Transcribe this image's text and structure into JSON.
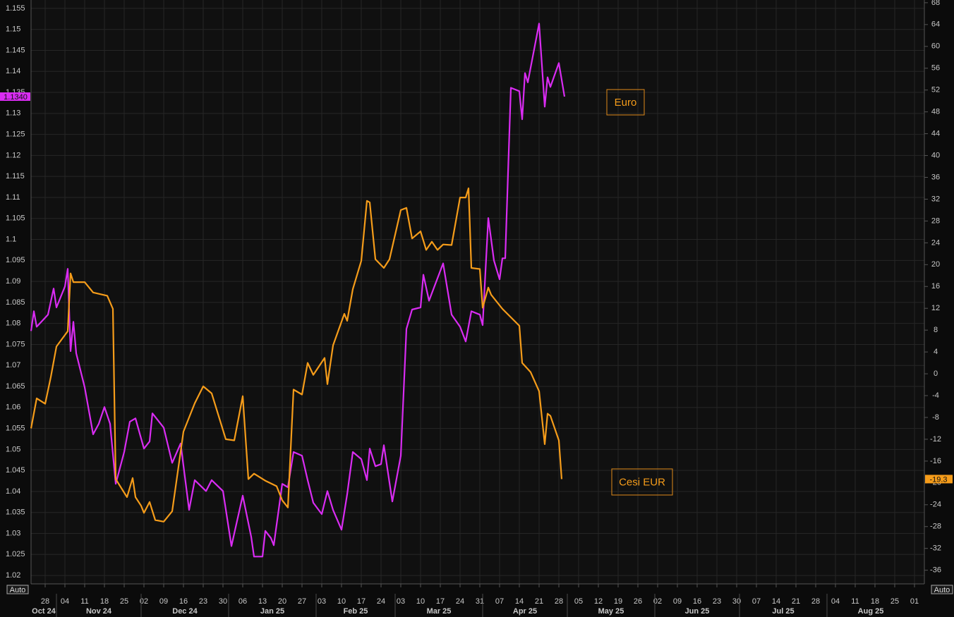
{
  "chart_data": {
    "type": "line",
    "grid": true,
    "xlim": [
      "2024-10-23",
      "2025-09-04"
    ],
    "xticks": [
      {
        "value": "2024-10-28",
        "label": "28"
      },
      {
        "value": "2024-11-04",
        "label": "04"
      },
      {
        "value": "2024-11-11",
        "label": "11"
      },
      {
        "value": "2024-11-18",
        "label": "18"
      },
      {
        "value": "2024-11-25",
        "label": "25"
      },
      {
        "value": "2024-12-02",
        "label": "02"
      },
      {
        "value": "2024-12-09",
        "label": "09"
      },
      {
        "value": "2024-12-16",
        "label": "16"
      },
      {
        "value": "2024-12-23",
        "label": "23"
      },
      {
        "value": "2024-12-30",
        "label": "30"
      },
      {
        "value": "2025-01-06",
        "label": "06"
      },
      {
        "value": "2025-01-13",
        "label": "13"
      },
      {
        "value": "2025-01-20",
        "label": "20"
      },
      {
        "value": "2025-01-27",
        "label": "27"
      },
      {
        "value": "2025-02-03",
        "label": "03"
      },
      {
        "value": "2025-02-10",
        "label": "10"
      },
      {
        "value": "2025-02-17",
        "label": "17"
      },
      {
        "value": "2025-02-24",
        "label": "24"
      },
      {
        "value": "2025-03-03",
        "label": "03"
      },
      {
        "value": "2025-03-10",
        "label": "10"
      },
      {
        "value": "2025-03-17",
        "label": "17"
      },
      {
        "value": "2025-03-24",
        "label": "24"
      },
      {
        "value": "2025-03-31",
        "label": "31"
      },
      {
        "value": "2025-04-07",
        "label": "07"
      },
      {
        "value": "2025-04-14",
        "label": "14"
      },
      {
        "value": "2025-04-21",
        "label": "21"
      },
      {
        "value": "2025-04-28",
        "label": "28"
      },
      {
        "value": "2025-05-05",
        "label": "05"
      },
      {
        "value": "2025-05-12",
        "label": "12"
      },
      {
        "value": "2025-05-19",
        "label": "19"
      },
      {
        "value": "2025-05-26",
        "label": "26"
      },
      {
        "value": "2025-06-02",
        "label": "02"
      },
      {
        "value": "2025-06-09",
        "label": "09"
      },
      {
        "value": "2025-06-16",
        "label": "16"
      },
      {
        "value": "2025-06-23",
        "label": "23"
      },
      {
        "value": "2025-06-30",
        "label": "30"
      },
      {
        "value": "2025-07-07",
        "label": "07"
      },
      {
        "value": "2025-07-14",
        "label": "14"
      },
      {
        "value": "2025-07-21",
        "label": "21"
      },
      {
        "value": "2025-07-28",
        "label": "28"
      },
      {
        "value": "2025-08-04",
        "label": "04"
      },
      {
        "value": "2025-08-11",
        "label": "11"
      },
      {
        "value": "2025-08-18",
        "label": "18"
      },
      {
        "value": "2025-08-25",
        "label": "25"
      },
      {
        "value": "2025-09-01",
        "label": "01"
      }
    ],
    "x_period_labels": [
      {
        "value": "2024-10",
        "label": "Oct 24"
      },
      {
        "value": "2024-11",
        "label": "Nov 24"
      },
      {
        "value": "2024-12",
        "label": "Dec 24"
      },
      {
        "value": "2025-01",
        "label": "Jan 25"
      },
      {
        "value": "2025-02",
        "label": "Feb 25"
      },
      {
        "value": "2025-03",
        "label": "Mar 25"
      },
      {
        "value": "2025-04",
        "label": "Apr 25"
      },
      {
        "value": "2025-05",
        "label": "May 25"
      },
      {
        "value": "2025-06",
        "label": "Jun 25"
      },
      {
        "value": "2025-07",
        "label": "Jul 25"
      },
      {
        "value": "2025-08",
        "label": "Aug 25"
      }
    ],
    "ylim": [
      1.018,
      1.157
    ],
    "yticks": [
      1.02,
      1.025,
      1.03,
      1.035,
      1.04,
      1.045,
      1.05,
      1.055,
      1.06,
      1.065,
      1.07,
      1.075,
      1.08,
      1.085,
      1.09,
      1.095,
      1.1,
      1.105,
      1.11,
      1.115,
      1.12,
      1.125,
      1.13,
      1.135,
      1.14,
      1.145,
      1.15,
      1.155
    ],
    "y2lim": [
      -38.5,
      68.5
    ],
    "y2ticks": [
      -36,
      -32,
      -28,
      -24,
      -20,
      -16,
      -12,
      -8,
      -4,
      0,
      4,
      8,
      12,
      16,
      20,
      24,
      28,
      32,
      36,
      40,
      44,
      48,
      52,
      56,
      60,
      64,
      68
    ],
    "left_scale_mode": "Auto",
    "right_scale_mode": "Auto",
    "series": [
      {
        "name": "Euro",
        "color": "#d92cf2",
        "axis": "y",
        "end_label": {
          "value": 1.134,
          "label": "1.1340"
        },
        "x": [
          "2024-10-23",
          "2024-10-24",
          "2024-10-25",
          "2024-10-29",
          "2024-10-31",
          "2024-11-01",
          "2024-11-04",
          "2024-11-05",
          "2024-11-06",
          "2024-11-07",
          "2024-11-08",
          "2024-11-11",
          "2024-11-14",
          "2024-11-16",
          "2024-11-18",
          "2024-11-20",
          "2024-11-22",
          "2024-11-25",
          "2024-11-27",
          "2024-11-29",
          "2024-12-02",
          "2024-12-04",
          "2024-12-05",
          "2024-12-09",
          "2024-12-12",
          "2024-12-15",
          "2024-12-18",
          "2024-12-20",
          "2024-12-24",
          "2024-12-26",
          "2024-12-30",
          "2025-01-02",
          "2025-01-06",
          "2025-01-09",
          "2025-01-10",
          "2025-01-13",
          "2025-01-14",
          "2025-01-16",
          "2025-01-17",
          "2025-01-20",
          "2025-01-22",
          "2025-01-24",
          "2025-01-27",
          "2025-01-29",
          "2025-01-31",
          "2025-02-03",
          "2025-02-05",
          "2025-02-07",
          "2025-02-10",
          "2025-02-12",
          "2025-02-14",
          "2025-02-17",
          "2025-02-19",
          "2025-02-20",
          "2025-02-22",
          "2025-02-24",
          "2025-02-25",
          "2025-02-28",
          "2025-03-03",
          "2025-03-05",
          "2025-03-07",
          "2025-03-10",
          "2025-03-11",
          "2025-03-13",
          "2025-03-18",
          "2025-03-21",
          "2025-03-24",
          "2025-03-26",
          "2025-03-28",
          "2025-03-31",
          "2025-04-01",
          "2025-04-03",
          "2025-04-05",
          "2025-04-07",
          "2025-04-08",
          "2025-04-09",
          "2025-04-11",
          "2025-04-14",
          "2025-04-15",
          "2025-04-16",
          "2025-04-17",
          "2025-04-21",
          "2025-04-23",
          "2025-04-24",
          "2025-04-25",
          "2025-04-28",
          "2025-04-30"
        ],
        "values": [
          1.0782,
          1.0829,
          1.0792,
          1.0821,
          1.0883,
          1.0838,
          1.0888,
          1.093,
          1.0734,
          1.0804,
          1.0729,
          1.0648,
          1.0536,
          1.0561,
          1.0601,
          1.0561,
          1.0418,
          1.0494,
          1.0566,
          1.0574,
          1.0502,
          1.0519,
          1.0586,
          1.0552,
          1.0468,
          1.0514,
          1.0356,
          1.0427,
          1.0401,
          1.0427,
          1.0401,
          1.027,
          1.039,
          1.0292,
          1.0245,
          1.0245,
          1.0306,
          1.0289,
          1.0272,
          1.0418,
          1.041,
          1.0494,
          1.0485,
          1.0427,
          1.0373,
          1.0346,
          1.0401,
          1.0356,
          1.0309,
          1.0393,
          1.0494,
          1.0477,
          1.0427,
          1.0502,
          1.046,
          1.0465,
          1.051,
          1.0376,
          1.0485,
          1.0787,
          1.0833,
          1.0838,
          1.0916,
          1.0854,
          1.0943,
          1.0821,
          1.0792,
          1.0757,
          1.0829,
          1.0821,
          1.0796,
          1.1051,
          1.095,
          1.0905,
          1.0955,
          1.0955,
          1.1361,
          1.1353,
          1.1286,
          1.1396,
          1.1374,
          1.1514,
          1.1316,
          1.1386,
          1.1363,
          1.142,
          1.134
        ]
      },
      {
        "name": "Cesi EUR",
        "color": "#f59c1a",
        "axis": "y2",
        "end_label": -19.3,
        "x": [
          "2024-10-23",
          "2024-10-25",
          "2024-10-28",
          "2024-10-30",
          "2024-11-01",
          "2024-11-04",
          "2024-11-05",
          "2024-11-06",
          "2024-11-07",
          "2024-11-11",
          "2024-11-14",
          "2024-11-19",
          "2024-11-21",
          "2024-11-22",
          "2024-11-26",
          "2024-11-28",
          "2024-11-29",
          "2024-12-01",
          "2024-12-02",
          "2024-12-04",
          "2024-12-06",
          "2024-12-09",
          "2024-12-12",
          "2024-12-16",
          "2024-12-20",
          "2024-12-23",
          "2024-12-26",
          "2024-12-31",
          "2025-01-03",
          "2025-01-06",
          "2025-01-08",
          "2025-01-10",
          "2025-01-14",
          "2025-01-18",
          "2025-01-20",
          "2025-01-22",
          "2025-01-24",
          "2025-01-27",
          "2025-01-29",
          "2025-01-31",
          "2025-02-04",
          "2025-02-05",
          "2025-02-07",
          "2025-02-11",
          "2025-02-12",
          "2025-02-14",
          "2025-02-17",
          "2025-02-19",
          "2025-02-20",
          "2025-02-22",
          "2025-02-25",
          "2025-02-27",
          "2025-03-03",
          "2025-03-05",
          "2025-03-07",
          "2025-03-10",
          "2025-03-12",
          "2025-03-14",
          "2025-03-16",
          "2025-03-18",
          "2025-03-21",
          "2025-03-24",
          "2025-03-26",
          "2025-03-27",
          "2025-03-28",
          "2025-03-31",
          "2025-04-01",
          "2025-04-03",
          "2025-04-04",
          "2025-04-08",
          "2025-04-14",
          "2025-04-15",
          "2025-04-18",
          "2025-04-21",
          "2025-04-23",
          "2025-04-24",
          "2025-04-25",
          "2025-04-28",
          "2025-04-29"
        ],
        "values": [
          -10.0,
          -4.5,
          -5.5,
          -0.6,
          5.0,
          7.1,
          7.8,
          18.4,
          16.8,
          16.8,
          14.9,
          14.3,
          11.9,
          -19.3,
          -22.6,
          -19.1,
          -22.6,
          -24.2,
          -25.5,
          -23.5,
          -26.8,
          -27.1,
          -25.2,
          -10.6,
          -5.4,
          -2.3,
          -3.6,
          -12.0,
          -12.2,
          -4.1,
          -19.3,
          -18.3,
          -19.6,
          -20.6,
          -23.2,
          -24.5,
          -2.9,
          -3.8,
          2.0,
          -0.2,
          2.9,
          -1.9,
          5.2,
          11.0,
          9.7,
          15.5,
          20.7,
          31.7,
          31.4,
          21.0,
          19.4,
          21.0,
          30.0,
          30.4,
          24.8,
          26.1,
          22.7,
          24.2,
          22.7,
          23.7,
          23.6,
          32.3,
          32.3,
          34.0,
          19.4,
          19.2,
          12.1,
          15.8,
          14.5,
          11.9,
          8.8,
          2.0,
          0.3,
          -3.2,
          -12.9,
          -7.3,
          -7.7,
          -12.2,
          -19.3
        ]
      }
    ]
  }
}
